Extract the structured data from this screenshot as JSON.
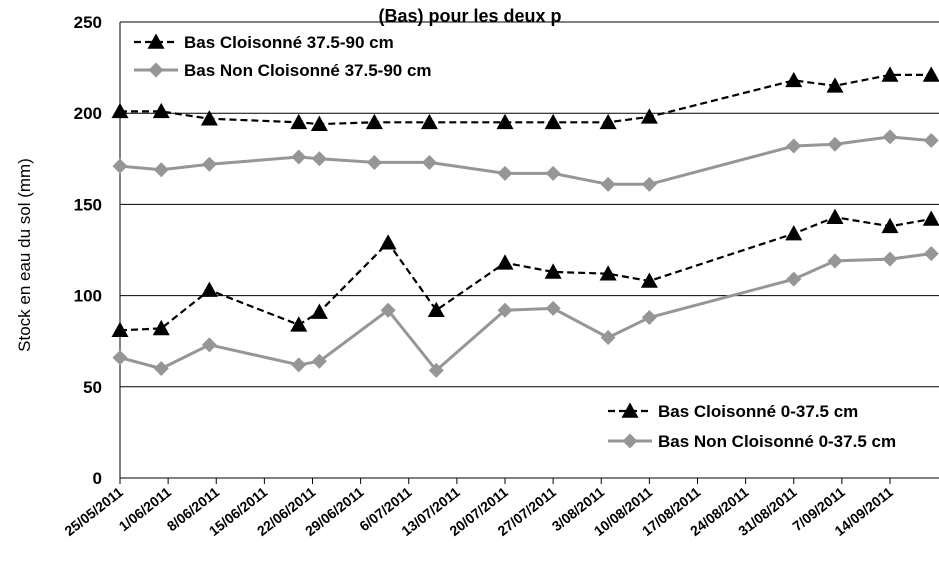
{
  "page": {
    "title_partial": "(Bas) pour les deux p"
  },
  "legend": {
    "top": [
      {
        "label": "Bas Cloisonné 37.5-90 cm"
      },
      {
        "label": "Bas Non Cloisonné 37.5-90 cm"
      }
    ],
    "bottom": [
      {
        "label": "Bas Cloisonné 0-37.5 cm"
      },
      {
        "label": "Bas Non Cloisonné 0-37.5 cm"
      }
    ]
  },
  "chart_data": {
    "type": "line",
    "title": "",
    "xlabel": "",
    "ylabel": "Stock en eau du sol  (mm)",
    "ylim": [
      0,
      250
    ],
    "yticks": [
      0,
      50,
      100,
      150,
      200,
      250
    ],
    "grid": true,
    "legend_placement": [
      "top-left",
      "bottom-right"
    ],
    "x_ticks": [
      "25/05/2011",
      "1/06/2011",
      "8/06/2011",
      "15/06/2011",
      "22/06/2011",
      "29/06/2011",
      "6/07/2011",
      "13/07/2011",
      "20/07/2011",
      "27/07/2011",
      "3/08/2011",
      "10/08/2011",
      "17/08/2011",
      "24/08/2011",
      "31/08/2011",
      "7/09/2011",
      "14/09/2011"
    ],
    "xlim": [
      "25/05/2011",
      "20/09/2011"
    ],
    "series": [
      {
        "name": "Bas Cloisonné 37.5-90 cm",
        "color": "#000000",
        "line_style": "dashed",
        "marker": "triangle",
        "points": [
          {
            "x": "25/05/2011",
            "y": 201
          },
          {
            "x": "31/05/2011",
            "y": 201
          },
          {
            "x": "7/06/2011",
            "y": 197
          },
          {
            "x": "20/06/2011",
            "y": 195
          },
          {
            "x": "23/06/2011",
            "y": 194
          },
          {
            "x": "1/07/2011",
            "y": 195
          },
          {
            "x": "9/07/2011",
            "y": 195
          },
          {
            "x": "20/07/2011",
            "y": 195
          },
          {
            "x": "27/07/2011",
            "y": 195
          },
          {
            "x": "4/08/2011",
            "y": 195
          },
          {
            "x": "10/08/2011",
            "y": 198
          },
          {
            "x": "31/08/2011",
            "y": 218
          },
          {
            "x": "6/09/2011",
            "y": 215
          },
          {
            "x": "14/09/2011",
            "y": 221
          },
          {
            "x": "20/09/2011",
            "y": 221
          }
        ]
      },
      {
        "name": "Bas Non Cloisonné 37.5-90 cm",
        "color": "#969696",
        "line_style": "solid",
        "marker": "diamond",
        "points": [
          {
            "x": "25/05/2011",
            "y": 171
          },
          {
            "x": "31/05/2011",
            "y": 169
          },
          {
            "x": "7/06/2011",
            "y": 172
          },
          {
            "x": "20/06/2011",
            "y": 176
          },
          {
            "x": "23/06/2011",
            "y": 175
          },
          {
            "x": "1/07/2011",
            "y": 173
          },
          {
            "x": "9/07/2011",
            "y": 173
          },
          {
            "x": "20/07/2011",
            "y": 167
          },
          {
            "x": "27/07/2011",
            "y": 167
          },
          {
            "x": "4/08/2011",
            "y": 161
          },
          {
            "x": "10/08/2011",
            "y": 161
          },
          {
            "x": "31/08/2011",
            "y": 182
          },
          {
            "x": "6/09/2011",
            "y": 183
          },
          {
            "x": "14/09/2011",
            "y": 187
          },
          {
            "x": "20/09/2011",
            "y": 185
          }
        ]
      },
      {
        "name": "Bas Cloisonné 0-37.5 cm",
        "color": "#000000",
        "line_style": "dashed",
        "marker": "triangle",
        "points": [
          {
            "x": "25/05/2011",
            "y": 81
          },
          {
            "x": "31/05/2011",
            "y": 82
          },
          {
            "x": "7/06/2011",
            "y": 103
          },
          {
            "x": "20/06/2011",
            "y": 84
          },
          {
            "x": "23/06/2011",
            "y": 91
          },
          {
            "x": "3/07/2011",
            "y": 129
          },
          {
            "x": "10/07/2011",
            "y": 92
          },
          {
            "x": "20/07/2011",
            "y": 118
          },
          {
            "x": "27/07/2011",
            "y": 113
          },
          {
            "x": "4/08/2011",
            "y": 112
          },
          {
            "x": "10/08/2011",
            "y": 108
          },
          {
            "x": "31/08/2011",
            "y": 134
          },
          {
            "x": "6/09/2011",
            "y": 143
          },
          {
            "x": "14/09/2011",
            "y": 138
          },
          {
            "x": "20/09/2011",
            "y": 142
          }
        ]
      },
      {
        "name": "Bas Non Cloisonné 0-37.5 cm",
        "color": "#969696",
        "line_style": "solid",
        "marker": "diamond",
        "points": [
          {
            "x": "25/05/2011",
            "y": 66
          },
          {
            "x": "31/05/2011",
            "y": 60
          },
          {
            "x": "7/06/2011",
            "y": 73
          },
          {
            "x": "20/06/2011",
            "y": 62
          },
          {
            "x": "23/06/2011",
            "y": 64
          },
          {
            "x": "3/07/2011",
            "y": 92
          },
          {
            "x": "10/07/2011",
            "y": 59
          },
          {
            "x": "20/07/2011",
            "y": 92
          },
          {
            "x": "27/07/2011",
            "y": 93
          },
          {
            "x": "4/08/2011",
            "y": 77
          },
          {
            "x": "10/08/2011",
            "y": 88
          },
          {
            "x": "31/08/2011",
            "y": 109
          },
          {
            "x": "6/09/2011",
            "y": 119
          },
          {
            "x": "14/09/2011",
            "y": 120
          },
          {
            "x": "20/09/2011",
            "y": 123
          }
        ]
      }
    ]
  }
}
